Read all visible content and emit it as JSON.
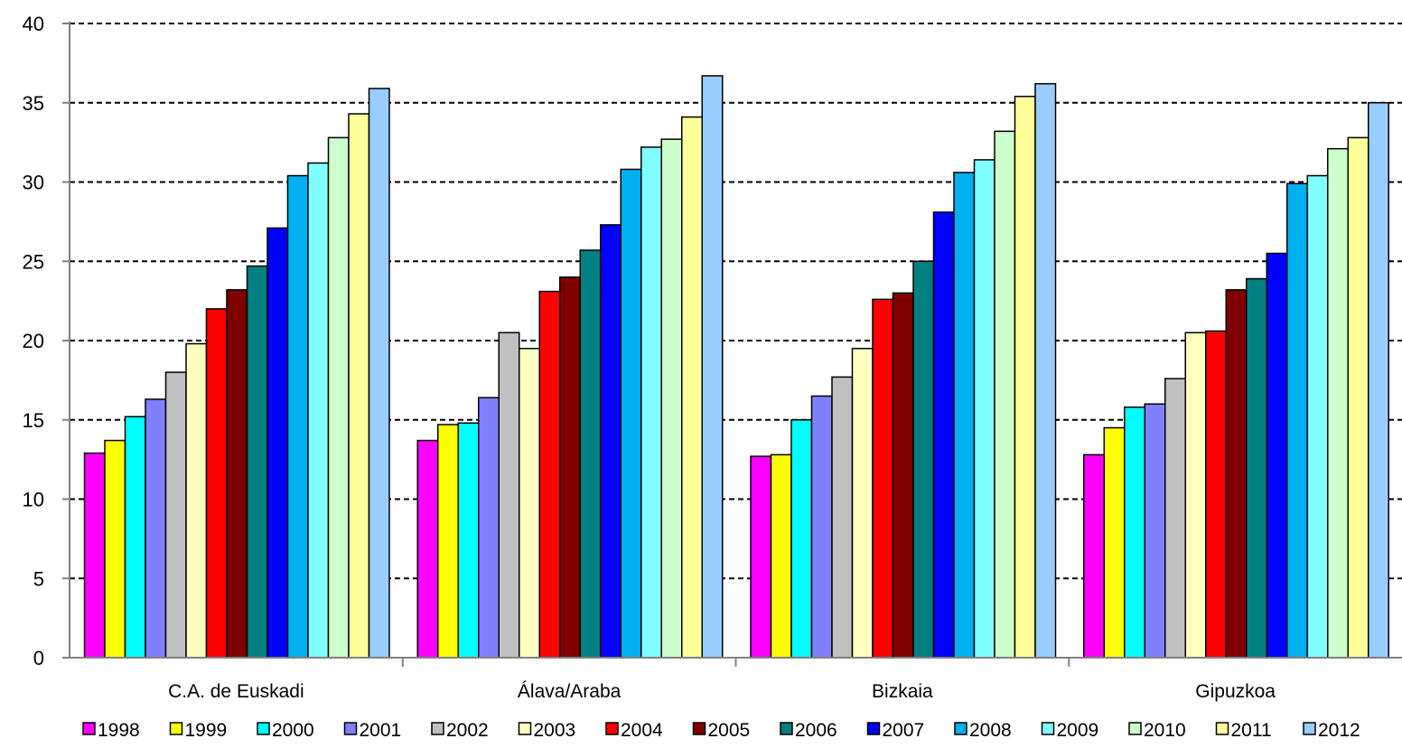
{
  "chart_data": {
    "type": "bar",
    "title": "",
    "xlabel": "",
    "ylabel": "",
    "ylim": [
      0,
      40
    ],
    "yticks": [
      0,
      5,
      10,
      15,
      20,
      25,
      30,
      35,
      40
    ],
    "grid": "horizontal dashed",
    "legend_position": "bottom",
    "categories": [
      "C.A. de Euskadi",
      "Álava/Araba",
      "Bizkaia",
      "Gipuzkoa"
    ],
    "series": [
      {
        "name": "1998",
        "color": "#FF00FF",
        "values": [
          12.9,
          13.7,
          12.7,
          12.8
        ]
      },
      {
        "name": "1999",
        "color": "#FFFF00",
        "values": [
          13.7,
          14.7,
          12.8,
          14.5
        ]
      },
      {
        "name": "2000",
        "color": "#00FFFF",
        "values": [
          15.2,
          14.8,
          15.0,
          15.8
        ]
      },
      {
        "name": "2001",
        "color": "#8080FF",
        "values": [
          16.3,
          16.4,
          16.5,
          16.0
        ]
      },
      {
        "name": "2002",
        "color": "#C0C0C0",
        "values": [
          18.0,
          20.5,
          17.7,
          17.6
        ]
      },
      {
        "name": "2003",
        "color": "#FFFFC0",
        "values": [
          19.8,
          19.5,
          19.5,
          20.5
        ]
      },
      {
        "name": "2004",
        "color": "#FF0000",
        "values": [
          22.0,
          23.1,
          22.6,
          20.6
        ]
      },
      {
        "name": "2005",
        "color": "#800000",
        "values": [
          23.2,
          24.0,
          23.0,
          23.2
        ]
      },
      {
        "name": "2006",
        "color": "#008080",
        "values": [
          24.7,
          25.7,
          25.0,
          23.9
        ]
      },
      {
        "name": "2007",
        "color": "#0000FF",
        "values": [
          27.1,
          27.3,
          28.1,
          25.5
        ]
      },
      {
        "name": "2008",
        "color": "#00B0F0",
        "values": [
          30.4,
          30.8,
          30.6,
          29.9
        ]
      },
      {
        "name": "2009",
        "color": "#80FFFF",
        "values": [
          31.2,
          32.2,
          31.4,
          30.4
        ]
      },
      {
        "name": "2010",
        "color": "#CCFFCC",
        "values": [
          32.8,
          32.7,
          33.2,
          32.1
        ]
      },
      {
        "name": "2011",
        "color": "#FFFF99",
        "values": [
          34.3,
          34.1,
          35.4,
          32.8
        ]
      },
      {
        "name": "2012",
        "color": "#99CCFF",
        "values": [
          35.9,
          36.7,
          36.2,
          35.0
        ]
      }
    ]
  }
}
